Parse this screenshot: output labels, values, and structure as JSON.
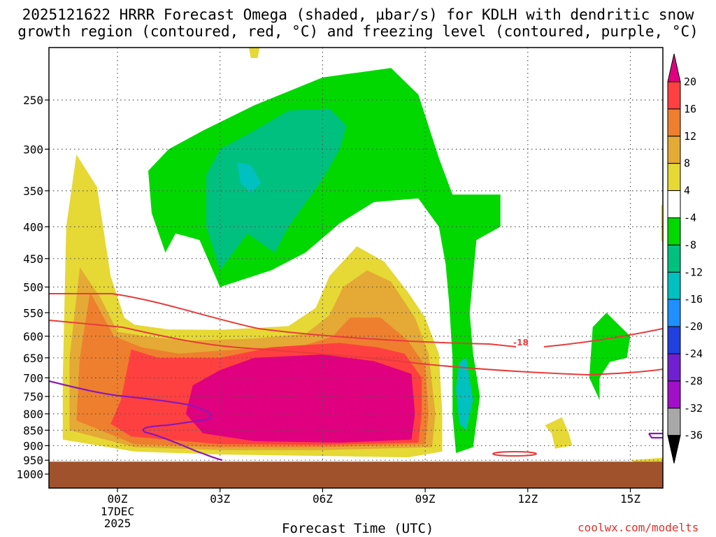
{
  "title_line1": "2025121622 HRRR Forecast Omega (shaded, µbar/s) for KDLH with dendritic snow",
  "title_line2": "growth region (contoured, red, °C) and freezing level (contoured, purple, °C)",
  "credit": "coolwx.com/modelts",
  "chart_data": {
    "type": "area",
    "xlabel": "Forecast Time (UTC)",
    "ylabel": "",
    "x_ticks": [
      {
        "label": "00Z",
        "sub": [
          "17DEC",
          "2025"
        ],
        "hour": 0
      },
      {
        "label": "03Z",
        "sub": [],
        "hour": 3
      },
      {
        "label": "06Z",
        "sub": [],
        "hour": 6
      },
      {
        "label": "09Z",
        "sub": [],
        "hour": 9
      },
      {
        "label": "12Z",
        "sub": [],
        "hour": 12
      },
      {
        "label": "15Z",
        "sub": [],
        "hour": 15
      }
    ],
    "xlim": [
      -2.0,
      16.0
    ],
    "y_ticks": [
      250,
      300,
      350,
      400,
      450,
      500,
      550,
      600,
      650,
      700,
      750,
      800,
      850,
      900,
      950,
      1000
    ],
    "ylim_hpa": [
      200,
      1050
    ],
    "y_scale": "log-pressure",
    "grid": true,
    "ground_level_hpa": 955,
    "ground_color": "#a0522d",
    "colorbar": {
      "labels": [
        "20",
        "16",
        "12",
        "8",
        "4",
        "-4",
        "-8",
        "-12",
        "-16",
        "-20",
        "-24",
        "-28",
        "-32",
        "-36"
      ],
      "colors": [
        "#e0007f",
        "#ff4040",
        "#ee7f2e",
        "#e5a935",
        "#e6d835",
        "#ffffff",
        "#00d800",
        "#00c080",
        "#00c0c0",
        "#1e90ff",
        "#2040e0",
        "#7020d0",
        "#a010c8",
        "#a8a8a8",
        "#000000"
      ],
      "top_arrow_color": "#e0007f",
      "bottom_arrow_color": "#000000"
    },
    "contours": [
      {
        "name": "dgz",
        "color": "#e63c3c",
        "label": "-18",
        "label_hour": 11.8,
        "label_hpa": 613
      },
      {
        "name": "freezing-level",
        "color": "#8b18b8"
      }
    ],
    "shading": [
      {
        "value_band": "4 to 8",
        "color": "#e6d835",
        "points": [
          [
            -1.2,
            306
          ],
          [
            -0.6,
            345
          ],
          [
            -0.2,
            480
          ],
          [
            0.2,
            560
          ],
          [
            0.5,
            575
          ],
          [
            1.5,
            585
          ],
          [
            3,
            586
          ],
          [
            5,
            578
          ],
          [
            5.8,
            540
          ],
          [
            6.2,
            480
          ],
          [
            7,
            430
          ],
          [
            7.8,
            455
          ],
          [
            8.5,
            510
          ],
          [
            9.0,
            560
          ],
          [
            9.4,
            640
          ],
          [
            9.5,
            800
          ],
          [
            9.5,
            920
          ],
          [
            8.5,
            940
          ],
          [
            6,
            935
          ],
          [
            3,
            930
          ],
          [
            0.5,
            920
          ],
          [
            -1.6,
            880
          ],
          [
            -1.6,
            700
          ],
          [
            -1.5,
            400
          ]
        ]
      },
      {
        "value_band": "8 to 12",
        "color": "#e5a935",
        "points": [
          [
            -1.1,
            465
          ],
          [
            -0.5,
            520
          ],
          [
            0,
            590
          ],
          [
            0.8,
            600
          ],
          [
            2,
            610
          ],
          [
            4,
            605
          ],
          [
            5.5,
            595
          ],
          [
            6.2,
            555
          ],
          [
            6.6,
            500
          ],
          [
            7.3,
            470
          ],
          [
            8.0,
            490
          ],
          [
            8.7,
            560
          ],
          [
            9.1,
            640
          ],
          [
            9.3,
            800
          ],
          [
            9.2,
            905
          ],
          [
            6,
            915
          ],
          [
            3,
            915
          ],
          [
            0.5,
            905
          ],
          [
            -1.4,
            850
          ],
          [
            -1.4,
            650
          ]
        ]
      },
      {
        "value_band": "12 to 16",
        "color": "#ee7f2e",
        "points": [
          [
            -0.8,
            510
          ],
          [
            -0.1,
            600
          ],
          [
            0.7,
            625
          ],
          [
            1.8,
            640
          ],
          [
            3.5,
            630
          ],
          [
            5.5,
            620
          ],
          [
            6.3,
            600
          ],
          [
            6.8,
            560
          ],
          [
            7.7,
            560
          ],
          [
            8.5,
            610
          ],
          [
            9.0,
            670
          ],
          [
            9.1,
            800
          ],
          [
            9.0,
            895
          ],
          [
            6,
            905
          ],
          [
            3,
            905
          ],
          [
            0.5,
            895
          ],
          [
            -1.2,
            820
          ],
          [
            -1.1,
            650
          ]
        ]
      },
      {
        "value_band": "16 to 20",
        "color": "#ff4040",
        "points": [
          [
            0.4,
            630
          ],
          [
            1.2,
            650
          ],
          [
            3.0,
            650
          ],
          [
            4.5,
            625
          ],
          [
            6.5,
            615
          ],
          [
            7.6,
            625
          ],
          [
            8.4,
            640
          ],
          [
            8.9,
            700
          ],
          [
            8.9,
            800
          ],
          [
            8.8,
            890
          ],
          [
            6,
            897
          ],
          [
            3,
            895
          ],
          [
            0.4,
            870
          ],
          [
            -0.2,
            830
          ],
          [
            0.1,
            760
          ]
        ]
      },
      {
        "value_band": "> 20",
        "color": "#e0007f",
        "points": [
          [
            2.2,
            720
          ],
          [
            3.0,
            680
          ],
          [
            4.0,
            650
          ],
          [
            6.0,
            642
          ],
          [
            7.5,
            658
          ],
          [
            8.6,
            690
          ],
          [
            8.7,
            800
          ],
          [
            8.6,
            880
          ],
          [
            6.5,
            890
          ],
          [
            4,
            885
          ],
          [
            2.5,
            860
          ],
          [
            2.0,
            800
          ]
        ]
      },
      {
        "value_band": "-8 to -4",
        "color": "#00d800",
        "points": [
          [
            1.0,
            380
          ],
          [
            0.9,
            325
          ],
          [
            1.5,
            300
          ],
          [
            2.5,
            280
          ],
          [
            4.0,
            255
          ],
          [
            6.0,
            230
          ],
          [
            8.0,
            222
          ],
          [
            8.8,
            245
          ],
          [
            9.4,
            310
          ],
          [
            9.8,
            355
          ],
          [
            11.2,
            355
          ],
          [
            11.2,
            400
          ],
          [
            10.5,
            420
          ],
          [
            10.3,
            550
          ],
          [
            10.4,
            640
          ],
          [
            10.6,
            750
          ],
          [
            10.4,
            905
          ],
          [
            9.9,
            925
          ],
          [
            9.8,
            800
          ],
          [
            9.8,
            650
          ],
          [
            9.7,
            530
          ],
          [
            9.6,
            460
          ],
          [
            9.4,
            400
          ],
          [
            8.8,
            360
          ],
          [
            7.5,
            365
          ],
          [
            6.5,
            395
          ],
          [
            5.5,
            440
          ],
          [
            4.5,
            470
          ],
          [
            3.0,
            500
          ],
          [
            2.4,
            420
          ],
          [
            1.7,
            410
          ],
          [
            1.4,
            440
          ]
        ]
      },
      {
        "value_band": "-12 to -8",
        "color": "#00c080",
        "points": [
          [
            2.6,
            330
          ],
          [
            3.0,
            300
          ],
          [
            4.0,
            280
          ],
          [
            5.0,
            260
          ],
          [
            6.2,
            258
          ],
          [
            6.7,
            275
          ],
          [
            6.5,
            300
          ],
          [
            6.0,
            335
          ],
          [
            5.0,
            400
          ],
          [
            4.6,
            440
          ],
          [
            3.8,
            410
          ],
          [
            3.0,
            470
          ],
          [
            2.6,
            400
          ]
        ]
      },
      {
        "value_band": "-16 to -12",
        "color": "#00c0c0",
        "points": [
          [
            3.5,
            315
          ],
          [
            3.9,
            318
          ],
          [
            4.2,
            340
          ],
          [
            3.9,
            352
          ],
          [
            3.6,
            340
          ]
        ]
      }
    ]
  }
}
